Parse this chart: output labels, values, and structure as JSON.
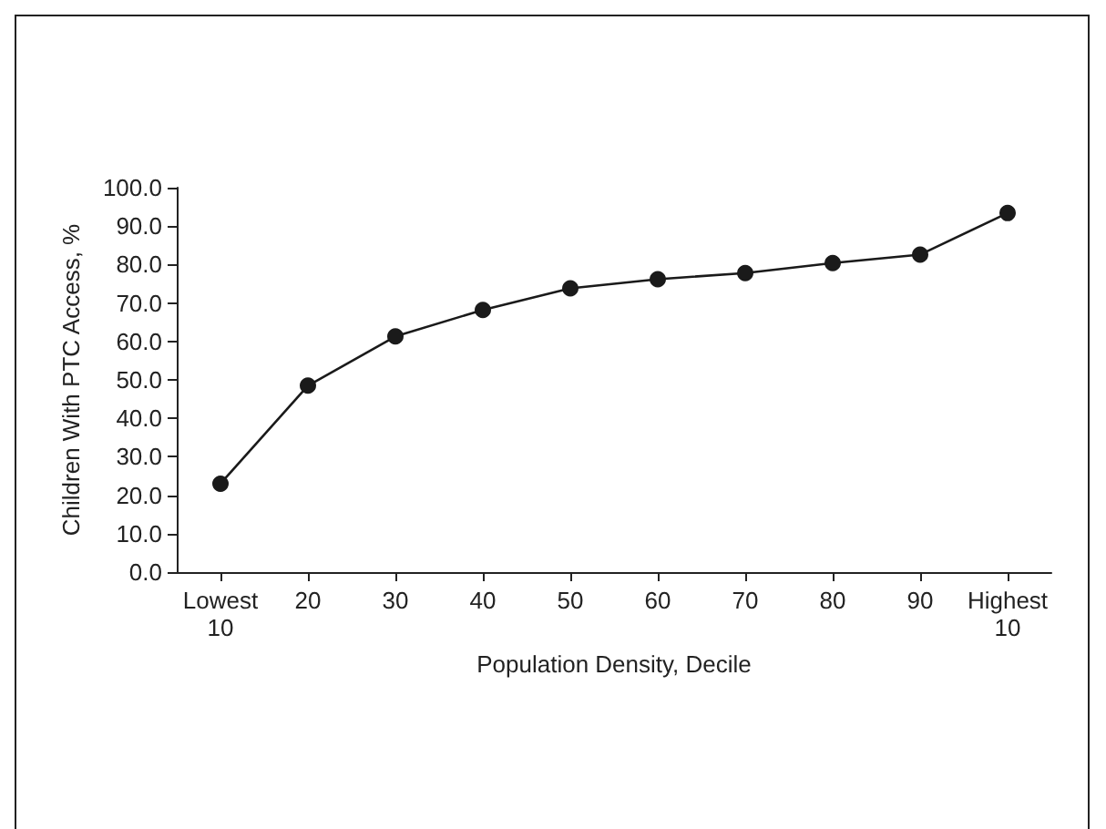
{
  "chart_data": {
    "type": "line",
    "xlabel": "Population Density, Decile",
    "ylabel": "Children With PTC Access, %",
    "categories": [
      "Lowest\n10",
      "20",
      "30",
      "40",
      "50",
      "60",
      "70",
      "80",
      "90",
      "Highest\n10"
    ],
    "series": [
      {
        "color": "#1a1a1a",
        "values": [
          23.0,
          48.5,
          61.3,
          68.2,
          73.8,
          76.2,
          77.8,
          80.4,
          82.6,
          93.4
        ]
      }
    ],
    "ylim": [
      0,
      100
    ],
    "yticks": [
      {
        "value": 0,
        "label": "0.0"
      },
      {
        "value": 10,
        "label": "10.0"
      },
      {
        "value": 20,
        "label": "20.0"
      },
      {
        "value": 30,
        "label": "30.0"
      },
      {
        "value": 40,
        "label": "40.0"
      },
      {
        "value": 50,
        "label": "50.0"
      },
      {
        "value": 60,
        "label": "60.0"
      },
      {
        "value": 70,
        "label": "70.0"
      },
      {
        "value": 80,
        "label": "80.0"
      },
      {
        "value": 90,
        "label": "90.0"
      },
      {
        "value": 100,
        "label": "100.0"
      }
    ],
    "grid": false,
    "legend": false,
    "marker": "circle",
    "line_style": "solid"
  }
}
